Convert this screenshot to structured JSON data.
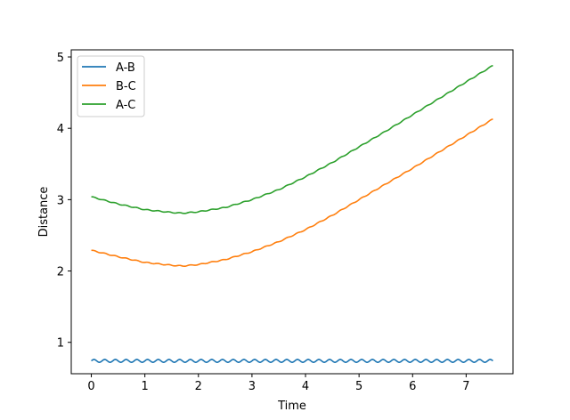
{
  "chart_data": {
    "type": "line",
    "title": "",
    "xlabel": "Time",
    "ylabel": "Distance",
    "xlim": [
      -0.375,
      7.875
    ],
    "ylim": [
      0.56,
      5.1
    ],
    "xticks": [
      0,
      1,
      2,
      3,
      4,
      5,
      6,
      7
    ],
    "yticks": [
      1,
      2,
      3,
      4,
      5
    ],
    "grid": false,
    "legend_position": "top-left",
    "x": [
      0.0,
      0.5,
      1.0,
      1.5,
      1.7,
      2.0,
      2.5,
      3.0,
      3.5,
      4.0,
      4.5,
      5.0,
      5.5,
      6.0,
      6.5,
      7.0,
      7.5
    ],
    "series": [
      {
        "name": "A-B",
        "color": "#1f77b4",
        "values": [
          0.74,
          0.74,
          0.74,
          0.74,
          0.74,
          0.74,
          0.74,
          0.74,
          0.74,
          0.74,
          0.74,
          0.74,
          0.74,
          0.74,
          0.74,
          0.74,
          0.74
        ],
        "oscillation_amplitude": 0.02,
        "oscillation_period": 0.2
      },
      {
        "name": "B-C",
        "color": "#ff7f0e",
        "values": [
          2.29,
          2.2,
          2.12,
          2.08,
          2.07,
          2.09,
          2.16,
          2.27,
          2.41,
          2.58,
          2.78,
          3.0,
          3.22,
          3.44,
          3.67,
          3.9,
          4.13
        ],
        "oscillation_amplitude": 0.006,
        "oscillation_period": 0.2
      },
      {
        "name": "A-C",
        "color": "#2ca02c",
        "values": [
          3.04,
          2.94,
          2.86,
          2.82,
          2.81,
          2.83,
          2.89,
          3.0,
          3.14,
          3.32,
          3.52,
          3.74,
          3.96,
          4.19,
          4.42,
          4.65,
          4.88
        ],
        "oscillation_amplitude": 0.006,
        "oscillation_period": 0.2
      }
    ]
  }
}
